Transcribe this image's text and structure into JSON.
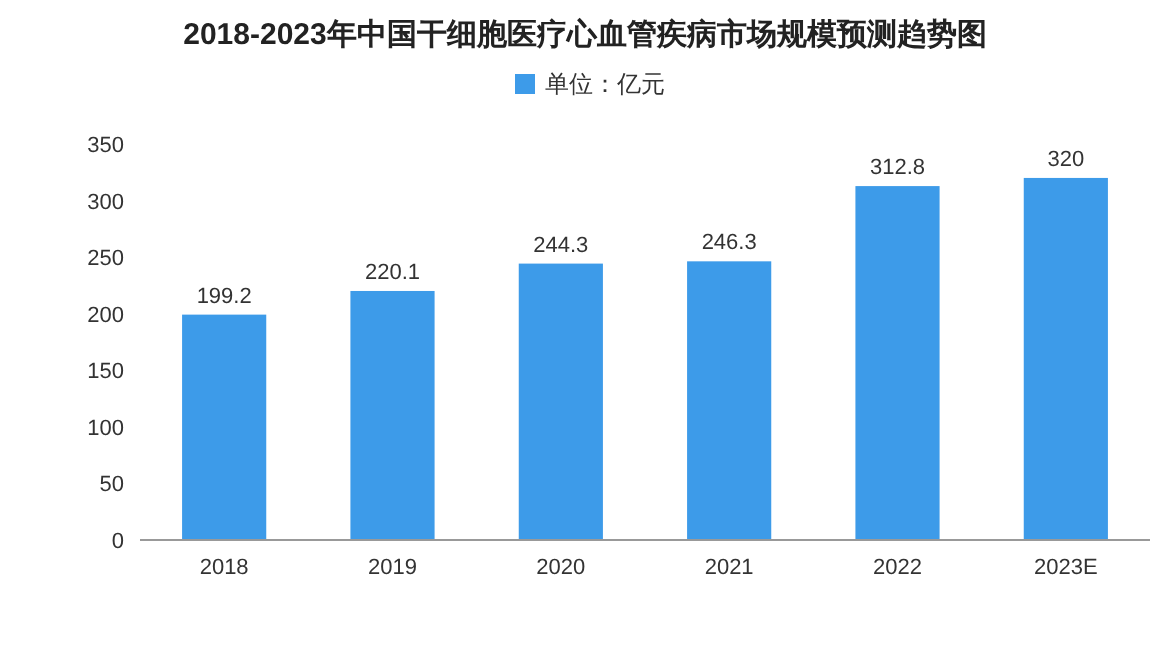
{
  "chart_data": {
    "type": "bar",
    "title": "2018-2023年中国干细胞医疗心血管疾病市场规模预测趋势图",
    "categories": [
      "2018",
      "2019",
      "2020",
      "2021",
      "2022",
      "2023E"
    ],
    "series": [
      {
        "name": "单位：亿元",
        "color": "#3d9be9",
        "values": [
          199.2,
          220.1,
          244.3,
          246.3,
          312.8,
          320
        ]
      }
    ],
    "ylim": [
      0,
      350
    ],
    "yticks": [
      0,
      50,
      100,
      150,
      200,
      250,
      300,
      350
    ],
    "data_labels": true,
    "legend": "top"
  }
}
